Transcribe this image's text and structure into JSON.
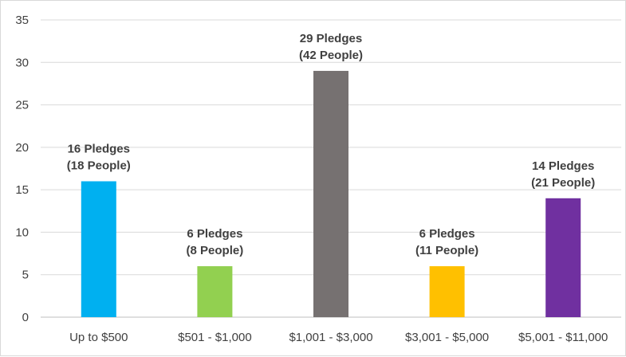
{
  "chart_data": {
    "type": "bar",
    "title": "",
    "xlabel": "",
    "ylabel": "",
    "ylim": [
      0,
      35
    ],
    "yticks": [
      0,
      5,
      10,
      15,
      20,
      25,
      30,
      35
    ],
    "grid": true,
    "legend": "none",
    "categories": [
      "Up to $500",
      "$501 - $1,000",
      "$1,001 - $3,000",
      "$3,001 - $5,000",
      "$5,001 - $11,000"
    ],
    "values": [
      16,
      6,
      29,
      6,
      14
    ],
    "colors": [
      "#00b0f0",
      "#92d050",
      "#767171",
      "#ffc000",
      "#7030a0"
    ],
    "data_labels": [
      [
        "16 Pledges",
        "(18 People)"
      ],
      [
        "6 Pledges",
        "(8 People)"
      ],
      [
        "29 Pledges",
        "(42 People)"
      ],
      [
        "6 Pledges",
        "(11 People)"
      ],
      [
        "14 Pledges",
        "(21 People)"
      ]
    ],
    "gridline_color": "#d9d9d9",
    "axis_color": "#bfbfbf"
  }
}
